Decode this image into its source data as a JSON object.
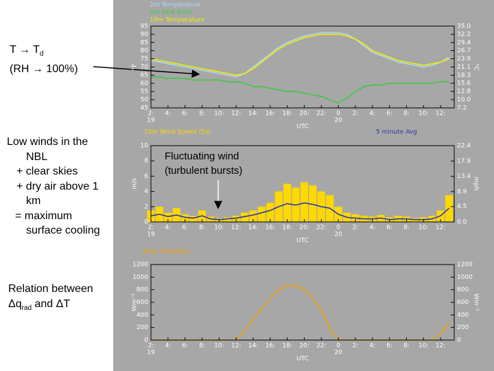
{
  "chart_data": [
    {
      "type": "line",
      "xlabel": "UTC",
      "ylabel": "°F",
      "y2label": "°C",
      "x": [
        2,
        3,
        4,
        5,
        6,
        7,
        8,
        9,
        10,
        11,
        12,
        13,
        14,
        15,
        16,
        17,
        18,
        19,
        20,
        21,
        22,
        23,
        24,
        25,
        26,
        27,
        28,
        29,
        30,
        31,
        32,
        33,
        34,
        35,
        36,
        37
      ],
      "xlim": [
        2,
        37.6
      ],
      "xticks": [
        {
          "value": 2,
          "label": "2:"
        },
        {
          "value": 4,
          "label": "4:"
        },
        {
          "value": 6,
          "label": "6:"
        },
        {
          "value": 8,
          "label": "8:"
        },
        {
          "value": 10,
          "label": "10:"
        },
        {
          "value": 12,
          "label": "12:"
        },
        {
          "value": 14,
          "label": "14:"
        },
        {
          "value": 16,
          "label": "16:"
        },
        {
          "value": 18,
          "label": "18:"
        },
        {
          "value": 20,
          "label": "20:"
        },
        {
          "value": 22,
          "label": "22:"
        },
        {
          "value": 24,
          "label": "0"
        },
        {
          "value": 26,
          "label": "2:"
        },
        {
          "value": 28,
          "label": "4:"
        },
        {
          "value": 30,
          "label": "6:"
        },
        {
          "value": 32,
          "label": "8:"
        },
        {
          "value": 34,
          "label": "10:"
        },
        {
          "value": 36,
          "label": "12:"
        }
      ],
      "date_labels": [
        {
          "value": 2,
          "label": "19"
        },
        {
          "value": 24,
          "label": "20"
        }
      ],
      "ylim": [
        45,
        95
      ],
      "yticks": [
        45,
        50,
        55,
        60,
        65,
        70,
        75,
        80,
        85,
        90,
        95
      ],
      "y2lim": [
        7.2,
        35
      ],
      "y2ticks": [
        7.2,
        {
          "value": 10,
          "label": "10.0"
        },
        12.8,
        15.6,
        18.3,
        21.1,
        23.9,
        26.7,
        29.4,
        32.2,
        {
          "value": 35,
          "label": "35.0"
        }
      ],
      "series": [
        {
          "name": "2m Temperature",
          "color": "#a8dcf4",
          "values": [
            74,
            73,
            72,
            71,
            70,
            69,
            68,
            67,
            66,
            65,
            64,
            66,
            70,
            74,
            78,
            82,
            85,
            87,
            89,
            90,
            91,
            91,
            91,
            90,
            87,
            83,
            79,
            77,
            75,
            73,
            72,
            71,
            70,
            71,
            73,
            76
          ]
        },
        {
          "name": "2m Dew Point",
          "color": "#3cc83c",
          "values": [
            64,
            64,
            63,
            63,
            63,
            62,
            62,
            62,
            62,
            61,
            61,
            60,
            58,
            58,
            57,
            56,
            55,
            55,
            54,
            53,
            52,
            50,
            48,
            51,
            55,
            58,
            59,
            59,
            60,
            60,
            60,
            60,
            60,
            60,
            61,
            61
          ]
        },
        {
          "name": "10m Temperature",
          "color": "#f4f000",
          "values": [
            75,
            74,
            73,
            72,
            71,
            70,
            69,
            68,
            67,
            66,
            65,
            66,
            69,
            73,
            77,
            81,
            84,
            86,
            88,
            89,
            90,
            90,
            90,
            89,
            87,
            84,
            80,
            78,
            76,
            74,
            73,
            72,
            71,
            72,
            73,
            75
          ]
        }
      ]
    },
    {
      "type": "combo",
      "xlabel": "UTC",
      "ylabel": "m/s",
      "y2label": "mph",
      "annotations": [
        "Fluctuating wind",
        "(turbulent bursts)"
      ],
      "x": [
        2,
        3,
        4,
        5,
        6,
        7,
        8,
        9,
        10,
        11,
        12,
        13,
        14,
        15,
        16,
        17,
        18,
        19,
        20,
        21,
        22,
        23,
        24,
        25,
        26,
        27,
        28,
        29,
        30,
        31,
        32,
        33,
        34,
        35,
        36,
        37
      ],
      "xlim": [
        2,
        37.6
      ],
      "xticks": [
        {
          "value": 2,
          "label": "2:"
        },
        {
          "value": 4,
          "label": "4:"
        },
        {
          "value": 6,
          "label": "6:"
        },
        {
          "value": 8,
          "label": "8:"
        },
        {
          "value": 10,
          "label": "10:"
        },
        {
          "value": 12,
          "label": "12:"
        },
        {
          "value": 14,
          "label": "14:"
        },
        {
          "value": 16,
          "label": "16:"
        },
        {
          "value": 18,
          "label": "18:"
        },
        {
          "value": 20,
          "label": "20:"
        },
        {
          "value": 22,
          "label": "22:"
        },
        {
          "value": 24,
          "label": "0"
        },
        {
          "value": 26,
          "label": "2:"
        },
        {
          "value": 28,
          "label": "4:"
        },
        {
          "value": 30,
          "label": "6:"
        },
        {
          "value": 32,
          "label": "8:"
        },
        {
          "value": 34,
          "label": "10:"
        },
        {
          "value": 36,
          "label": "12:"
        }
      ],
      "date_labels": [
        {
          "value": 2,
          "label": "19"
        },
        {
          "value": 24,
          "label": "20"
        }
      ],
      "ylim": [
        0,
        10
      ],
      "yticks": [
        0,
        2,
        4,
        6,
        8,
        10
      ],
      "y2lim": [
        0,
        22.4
      ],
      "y2ticks": [
        {
          "value": 0,
          "label": "0.0"
        },
        4.5,
        8.9,
        13.4,
        17.9,
        22.4
      ],
      "series": [
        {
          "name": "10m Wind Speed (5s)",
          "type": "bar",
          "color": "#ffd800",
          "values": [
            1.5,
            2.0,
            1.2,
            1.8,
            1.0,
            0.8,
            1.5,
            0.7,
            0.5,
            0.6,
            0.8,
            1.2,
            1.5,
            2.0,
            2.5,
            4.0,
            5.0,
            4.5,
            5.2,
            4.8,
            4.0,
            3.5,
            2.0,
            1.2,
            1.0,
            0.8,
            0.7,
            0.9,
            0.6,
            0.8,
            0.7,
            0.5,
            0.6,
            0.8,
            1.5,
            3.5
          ]
        },
        {
          "name": "5 minute Avg",
          "type": "line",
          "color": "#2838a8",
          "values": [
            0.8,
            1.0,
            0.7,
            0.9,
            0.6,
            0.5,
            0.8,
            0.4,
            0.3,
            0.4,
            0.5,
            0.7,
            0.9,
            1.2,
            1.5,
            2.0,
            2.4,
            2.2,
            2.5,
            2.3,
            2.0,
            1.8,
            1.0,
            0.6,
            0.5,
            0.4,
            0.4,
            0.5,
            0.3,
            0.4,
            0.4,
            0.3,
            0.3,
            0.4,
            0.8,
            1.8
          ]
        }
      ]
    },
    {
      "type": "line",
      "xlabel": "UTC",
      "ylabel": "Wm⁻²",
      "y2label": "Wm⁻²",
      "x": [
        2,
        3,
        4,
        5,
        6,
        7,
        8,
        9,
        10,
        11,
        12,
        13,
        14,
        15,
        16,
        17,
        18,
        19,
        20,
        21,
        22,
        23,
        24,
        25,
        26,
        27,
        28,
        29,
        30,
        31,
        32,
        33,
        34,
        35,
        36,
        37
      ],
      "xlim": [
        2,
        37.6
      ],
      "xticks": [
        {
          "value": 2,
          "label": "2:"
        },
        {
          "value": 4,
          "label": "4:"
        },
        {
          "value": 6,
          "label": "6:"
        },
        {
          "value": 8,
          "label": "8:"
        },
        {
          "value": 10,
          "label": "10:"
        },
        {
          "value": 12,
          "label": "12:"
        },
        {
          "value": 14,
          "label": "14:"
        },
        {
          "value": 16,
          "label": "16:"
        },
        {
          "value": 18,
          "label": "18:"
        },
        {
          "value": 20,
          "label": "20:"
        },
        {
          "value": 22,
          "label": "22:"
        },
        {
          "value": 24,
          "label": "0"
        },
        {
          "value": 26,
          "label": "2:"
        },
        {
          "value": 28,
          "label": "4:"
        },
        {
          "value": 30,
          "label": "6:"
        },
        {
          "value": 32,
          "label": "8:"
        },
        {
          "value": 34,
          "label": "10:"
        },
        {
          "value": 36,
          "label": "12:"
        }
      ],
      "date_labels": [
        {
          "value": 2,
          "label": "19"
        },
        {
          "value": 24,
          "label": "20"
        }
      ],
      "ylim": [
        0,
        1200
      ],
      "yticks": [
        0,
        200,
        400,
        600,
        800,
        1000,
        1200
      ],
      "y2lim": [
        0,
        1200
      ],
      "y2ticks": [
        0,
        200,
        400,
        600,
        800,
        1000,
        1200
      ],
      "series": [
        {
          "name": "Solar Radiation",
          "color": "#f0a000",
          "values": [
            0,
            0,
            0,
            0,
            0,
            0,
            0,
            0,
            0,
            0,
            0,
            150,
            330,
            500,
            660,
            800,
            870,
            870,
            800,
            660,
            470,
            180,
            0,
            0,
            0,
            0,
            0,
            0,
            0,
            0,
            0,
            0,
            0,
            0,
            100,
            260
          ]
        }
      ]
    }
  ],
  "notes": {
    "dewpoint": {
      "line1": "T → T",
      "sub": "d",
      "line2": "(RH → 100%)"
    },
    "winds": [
      "Low winds in the",
      "NBL",
      "+ clear skies",
      "+ dry air above 1",
      "km",
      "= maximum",
      "surface cooling"
    ],
    "relation": {
      "line1": "Relation between",
      "part1": "Δq",
      "sub": "rad",
      "part2": " and ΔT"
    }
  }
}
